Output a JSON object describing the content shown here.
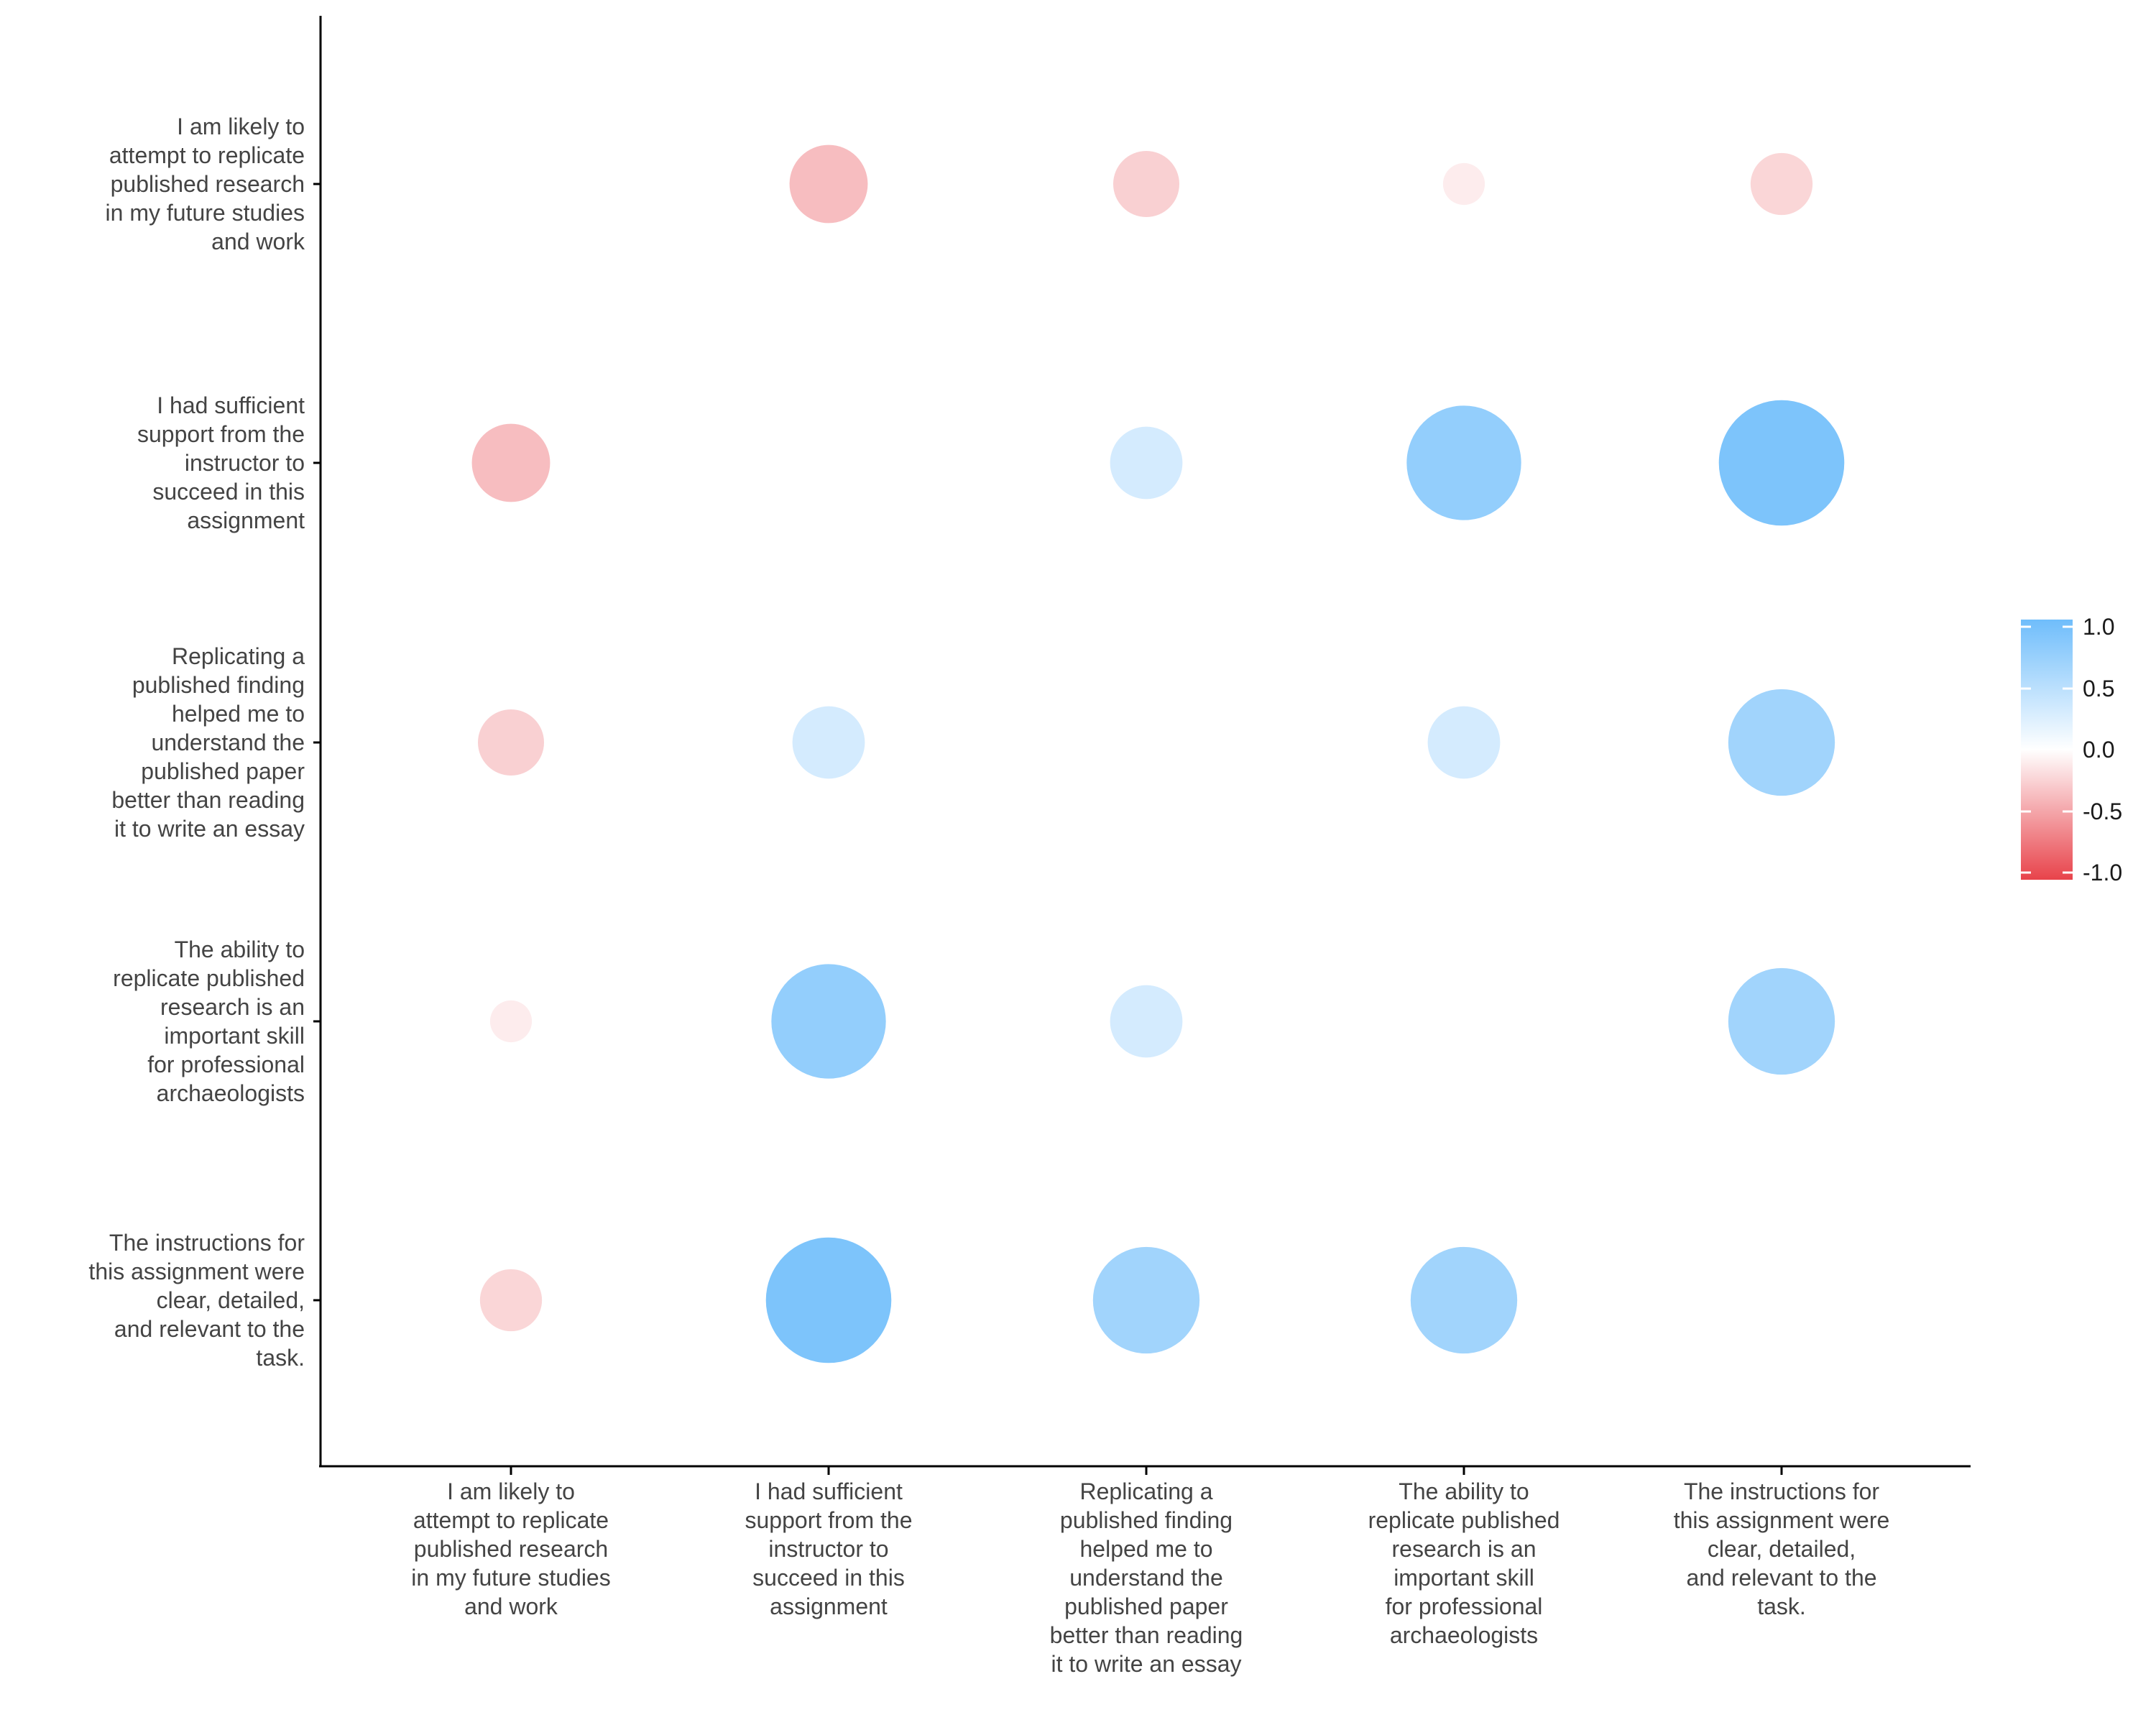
{
  "chart_data": {
    "type": "bubble-correlation-matrix",
    "variables": [
      "I am likely to attempt to replicate published research in my future studies and work",
      "I had sufficient support from the instructor to succeed in this assignment",
      "Replicating a published finding helped me to understand the published paper better than reading it to write an essay",
      "The ability to replicate published research is an important skill for professional archaeologists",
      "The instructions for this assignment were clear, detailed, and relevant to the task."
    ],
    "label_lines": [
      [
        "I am likely to",
        "attempt to replicate",
        "published research",
        "in my future studies",
        "and work"
      ],
      [
        "I had sufficient",
        "support from the",
        "instructor to",
        "succeed in this",
        "assignment"
      ],
      [
        "Replicating a",
        "published finding",
        "helped me to",
        "understand the",
        "published paper",
        "better than reading",
        "it to write an essay"
      ],
      [
        "The ability to",
        "replicate published",
        "research is an",
        "important skill",
        "for professional",
        "archaeologists"
      ],
      [
        "The instructions for",
        "this assignment were",
        "clear, detailed,",
        "and relevant to the",
        "task."
      ]
    ],
    "matrix": [
      [
        null,
        -0.35,
        -0.25,
        -0.1,
        -0.22
      ],
      [
        -0.35,
        null,
        0.3,
        0.75,
        0.9
      ],
      [
        -0.25,
        0.3,
        null,
        0.3,
        0.65
      ],
      [
        -0.1,
        0.75,
        0.3,
        null,
        0.65
      ],
      [
        -0.22,
        0.9,
        0.65,
        0.65,
        null
      ]
    ],
    "colorbar": {
      "range": [
        -1,
        1
      ],
      "ticks": [
        "1.0",
        "0.5",
        "0.0",
        "-0.5",
        "-1.0"
      ],
      "low_color": "#e8434b",
      "mid_color": "#ffffff",
      "high_color": "#6fbdfb"
    }
  }
}
